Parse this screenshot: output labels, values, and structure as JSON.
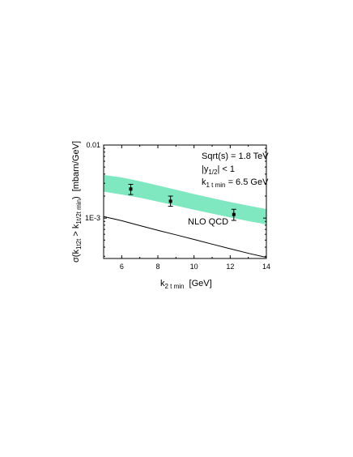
{
  "chart_data": {
    "type": "line",
    "xlabel": {
      "main": "k",
      "sub": "2 t min",
      "unit": "[GeV]"
    },
    "ylabel": {
      "main": "σ(k",
      "sub1": "1t2t",
      "mid": " > k",
      "sub2": "1t/2t min",
      "close": ")",
      "unit": "[mbarn/GeV]"
    },
    "xlim": [
      5,
      14
    ],
    "ylim": [
      0.00028,
      0.01
    ],
    "y_scale": "log",
    "x_ticks": [
      6,
      8,
      10,
      12,
      14
    ],
    "y_tick_labels": [
      {
        "value": 0.01,
        "label": "0.01"
      },
      {
        "value": 0.001,
        "label": "1E-3"
      }
    ],
    "annotations": {
      "sqrt_s": "Sqrt(s) = 1.8 TeV",
      "rapidity_main": "|y",
      "rapidity_sub": "1/2",
      "rapidity_rest": "| < 1",
      "k1_main": "k",
      "k1_sub": "1 t min",
      "k1_rest": " = 6.5 GeV",
      "curve_label": "NLO QCD"
    },
    "series": [
      {
        "name": "NLO QCD",
        "kind": "line",
        "x": [
          5,
          6,
          7,
          8,
          9,
          10,
          11,
          12,
          13,
          14
        ],
        "y": [
          0.00105,
          0.00092,
          0.00079,
          0.00068,
          0.00059,
          0.00051,
          0.00044,
          0.00038,
          0.00033,
          0.00029
        ]
      },
      {
        "kind": "band",
        "color": "#7fe8c0",
        "x": [
          5,
          6,
          7,
          8,
          9,
          10,
          11,
          12,
          13,
          14
        ],
        "y_low": [
          0.0023,
          0.0021,
          0.0019,
          0.00168,
          0.00148,
          0.0013,
          0.00115,
          0.00102,
          0.00091,
          0.00082
        ],
        "y_high": [
          0.0039,
          0.0036,
          0.0032,
          0.0028,
          0.00245,
          0.00213,
          0.00188,
          0.00166,
          0.00148,
          0.00133
        ]
      },
      {
        "kind": "points",
        "x": [
          6.5,
          8.7,
          12.2
        ],
        "y": [
          0.0025,
          0.0017,
          0.00112
        ],
        "y_err_low": [
          0.0021,
          0.00145,
          0.00093
        ],
        "y_err_high": [
          0.0029,
          0.002,
          0.00132
        ]
      }
    ]
  }
}
